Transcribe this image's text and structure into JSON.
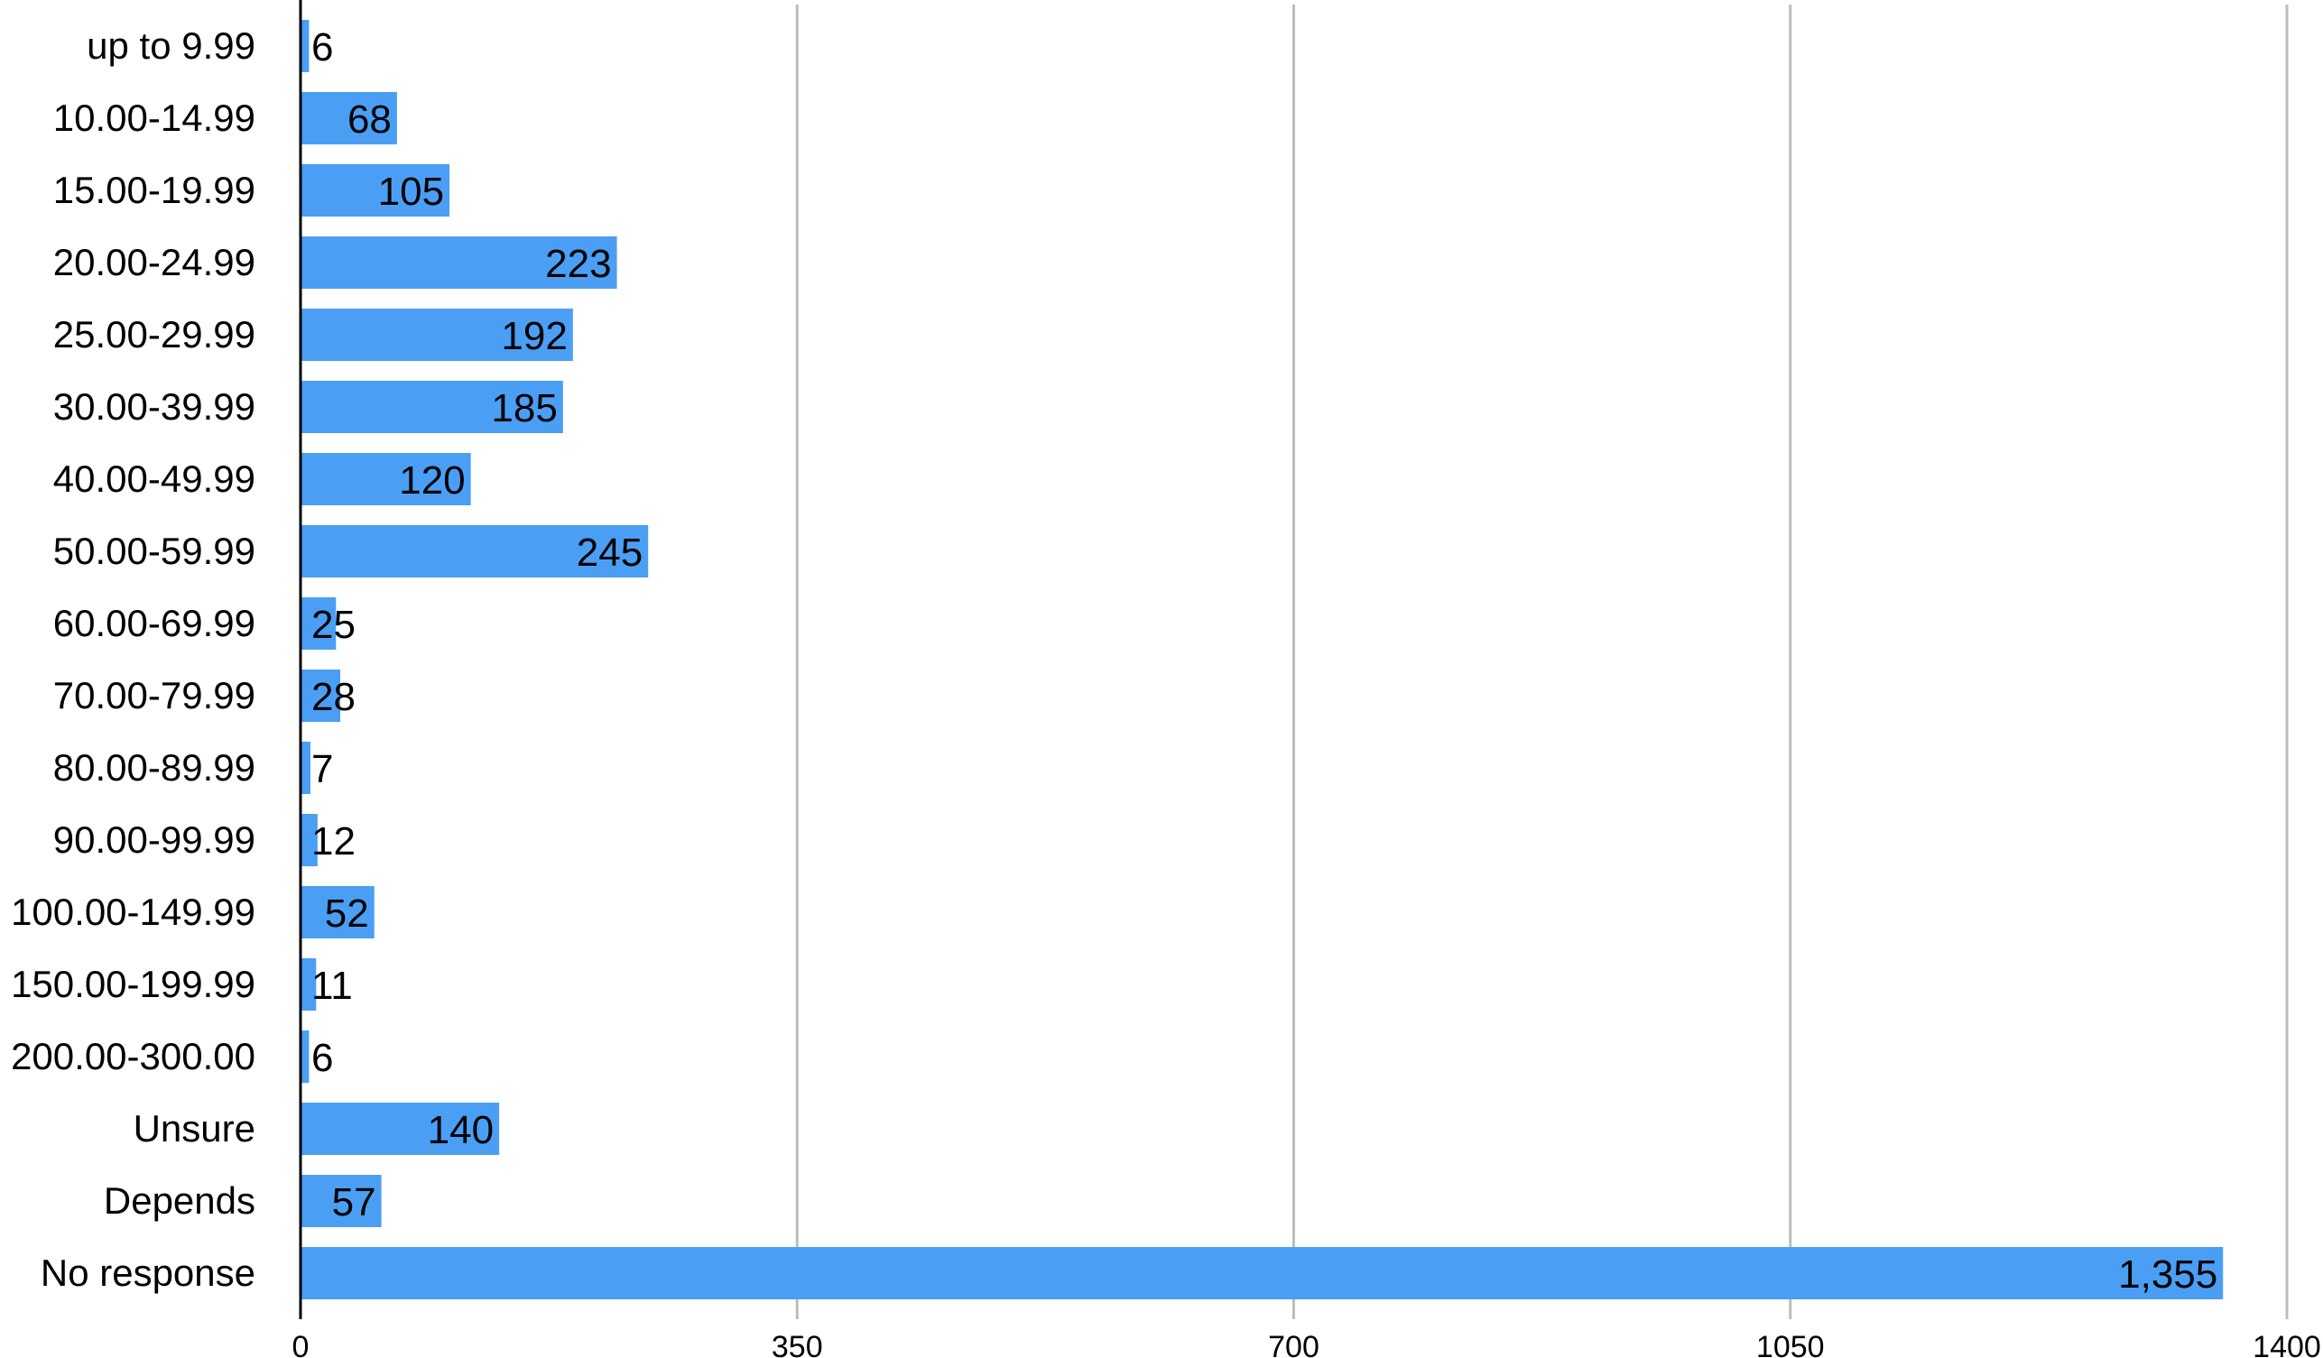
{
  "chart_data": {
    "type": "bar",
    "orientation": "horizontal",
    "categories": [
      "up to 9.99",
      "10.00-14.99",
      "15.00-19.99",
      "20.00-24.99",
      "25.00-29.99",
      "30.00-39.99",
      "40.00-49.99",
      "50.00-59.99",
      "60.00-69.99",
      "70.00-79.99",
      "80.00-89.99",
      "90.00-99.99",
      "100.00-149.99",
      "150.00-199.99",
      "200.00-300.00",
      "Unsure",
      "Depends",
      "No response"
    ],
    "values": [
      6,
      68,
      105,
      223,
      192,
      185,
      120,
      245,
      25,
      28,
      7,
      12,
      52,
      11,
      6,
      140,
      57,
      1355
    ],
    "value_labels": [
      "6",
      "68",
      "105",
      "223",
      "192",
      "185",
      "120",
      "245",
      "25",
      "28",
      "7",
      "12",
      "52",
      "11",
      "6",
      "140",
      "57",
      "1,355"
    ],
    "xlim": [
      0,
      1400
    ],
    "xticks": [
      0,
      350,
      700,
      1050,
      1400
    ],
    "xtick_labels": [
      "0",
      "350",
      "700",
      "1050",
      "1400"
    ],
    "grid": "vertical",
    "legend": "none",
    "bar_color": "#4a9ff5",
    "grid_color": "#bdbdbd",
    "axis_color": "#000000"
  }
}
